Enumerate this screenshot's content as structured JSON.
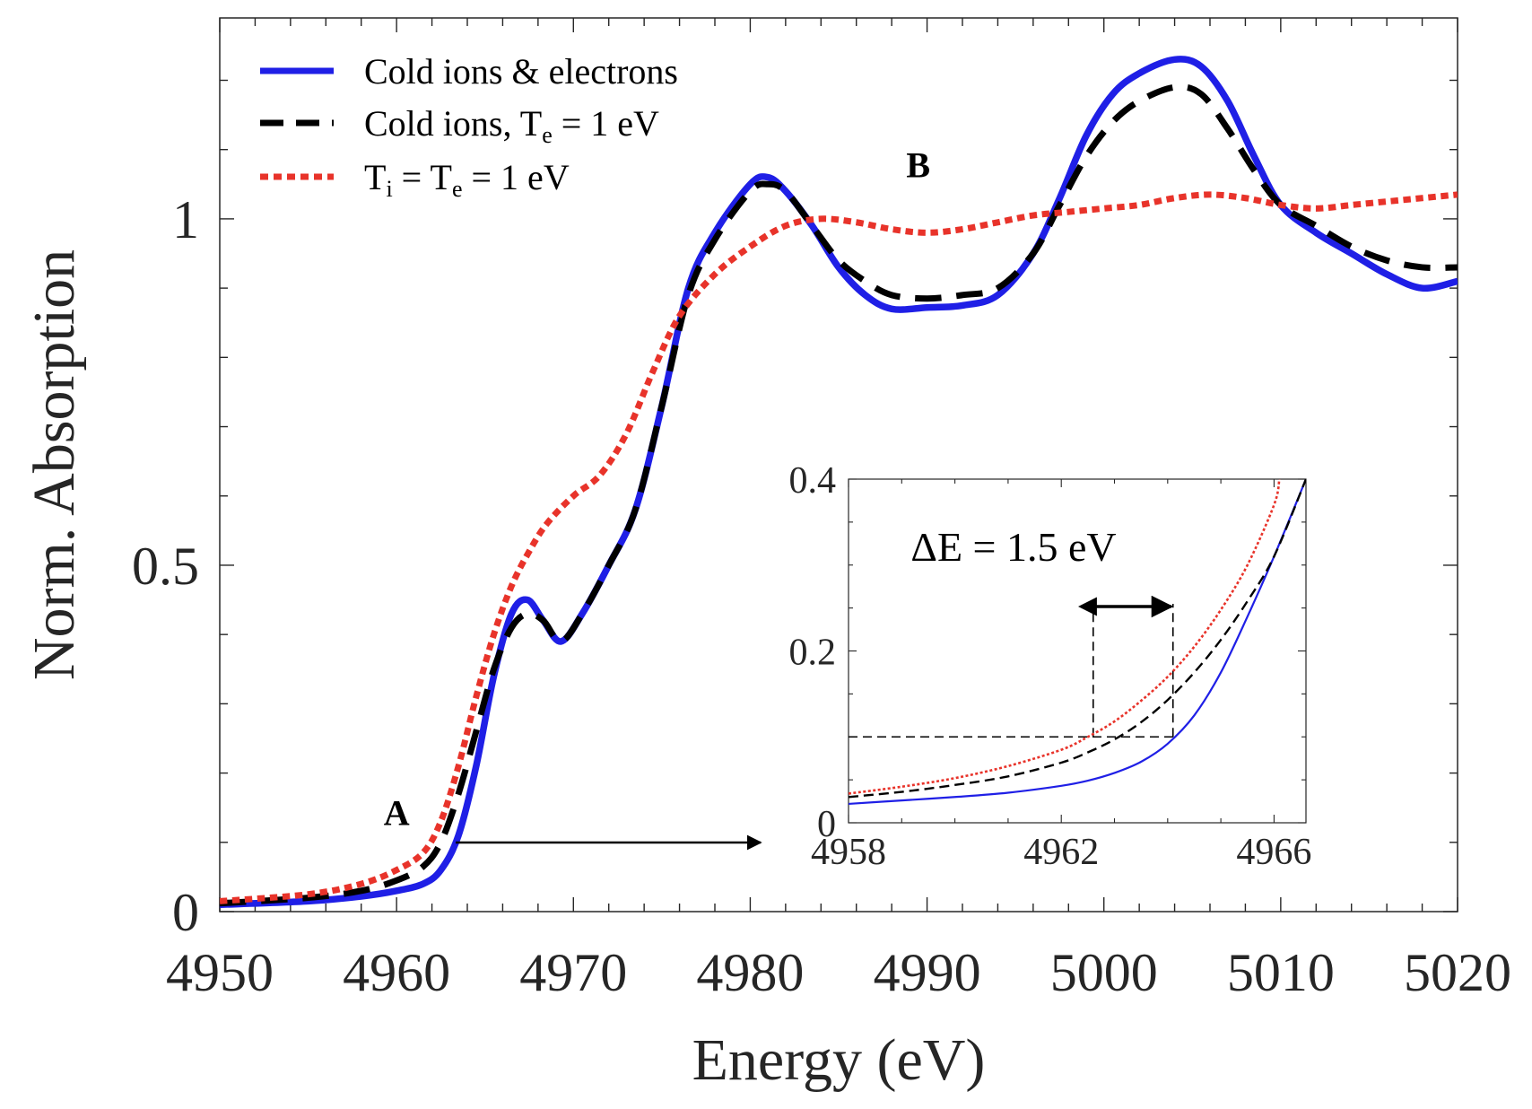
{
  "chart_data": [
    {
      "type": "line",
      "title": "",
      "xlabel": "Energy (eV)",
      "ylabel": "Norm. Absorption",
      "xlim": [
        4950,
        5020
      ],
      "ylim": [
        0,
        1.29
      ],
      "xticks": [
        4950,
        4960,
        4970,
        4980,
        4990,
        5000,
        5010,
        5020
      ],
      "xtick_labels": [
        "4950",
        "4960",
        "4970",
        "4980",
        "4990",
        "5000",
        "5010",
        "5020"
      ],
      "yticks": [
        0,
        0.5,
        1
      ],
      "ytick_labels": [
        "0",
        "0.5",
        "1"
      ],
      "grid": false,
      "legend_position": "top-left",
      "series": [
        {
          "name": "Cold ions & electrons",
          "name_parts": [
            "Cold ions & electrons"
          ],
          "color": "#1f1fe6",
          "style": "solid",
          "x": [
            4950,
            4955,
            4958,
            4960,
            4961.5,
            4962.5,
            4963.5,
            4964.5,
            4965.5,
            4966.5,
            4967.4,
            4968.3,
            4969.3,
            4970.5,
            4972,
            4973.5,
            4975,
            4976.5,
            4978,
            4980,
            4981,
            4982,
            4983.5,
            4985,
            4986.5,
            4988,
            4990,
            4992,
            4994,
            4996,
            4997.5,
            4999,
            5000.5,
            5002,
            5004,
            5005.5,
            5007,
            5008.5,
            5010,
            5012,
            5014,
            5016,
            5018,
            5020
          ],
          "y": [
            0.01,
            0.015,
            0.022,
            0.03,
            0.04,
            0.06,
            0.11,
            0.21,
            0.34,
            0.43,
            0.45,
            0.42,
            0.39,
            0.43,
            0.5,
            0.58,
            0.73,
            0.9,
            0.98,
            1.05,
            1.06,
            1.04,
            0.99,
            0.93,
            0.89,
            0.87,
            0.872,
            0.875,
            0.89,
            0.95,
            1.03,
            1.12,
            1.18,
            1.21,
            1.23,
            1.22,
            1.17,
            1.09,
            1.02,
            0.98,
            0.95,
            0.92,
            0.9,
            0.91
          ]
        },
        {
          "name": "Cold ions, T_e = 1 eV",
          "name_parts": [
            "Cold ions, T",
            "e",
            " = 1 eV"
          ],
          "color": "#000000",
          "style": "dashed",
          "x": [
            4950,
            4955,
            4958,
            4960,
            4961.5,
            4962.5,
            4963.5,
            4964.5,
            4965.5,
            4966.5,
            4967.4,
            4968.3,
            4969.3,
            4970.5,
            4972,
            4973.5,
            4975,
            4976.5,
            4978,
            4980,
            4981,
            4982,
            4983.5,
            4985,
            4986.5,
            4988,
            4990,
            4992,
            4994,
            4996,
            4997.5,
            4999,
            5000.5,
            5002,
            5004,
            5005.5,
            5007,
            5008.5,
            5010,
            5012,
            5014,
            5016,
            5018,
            5020
          ],
          "y": [
            0.012,
            0.02,
            0.03,
            0.045,
            0.065,
            0.1,
            0.17,
            0.26,
            0.35,
            0.41,
            0.43,
            0.42,
            0.39,
            0.43,
            0.5,
            0.58,
            0.73,
            0.89,
            0.97,
            1.04,
            1.05,
            1.04,
            0.99,
            0.94,
            0.91,
            0.89,
            0.885,
            0.89,
            0.9,
            0.95,
            1.02,
            1.09,
            1.14,
            1.17,
            1.19,
            1.18,
            1.13,
            1.07,
            1.02,
            0.99,
            0.96,
            0.94,
            0.93,
            0.93
          ]
        },
        {
          "name": "T_i = T_e = 1 eV",
          "name_parts": [
            "T",
            "i",
            " = T",
            "e",
            " = 1 eV"
          ],
          "color": "#e8332a",
          "style": "dotted",
          "x": [
            4950,
            4955,
            4958,
            4960,
            4961.5,
            4962.5,
            4963.5,
            4964.5,
            4965.5,
            4966.5,
            4967.5,
            4968.5,
            4970,
            4971.5,
            4973,
            4974.5,
            4976,
            4978,
            4980,
            4982,
            4984,
            4986,
            4988,
            4990,
            4992,
            4994,
            4996,
            4998,
            5000,
            5002,
            5004,
            5006,
            5008,
            5010,
            5012,
            5014,
            5016,
            5018,
            5020
          ],
          "y": [
            0.015,
            0.025,
            0.04,
            0.06,
            0.085,
            0.13,
            0.21,
            0.31,
            0.4,
            0.47,
            0.52,
            0.56,
            0.6,
            0.63,
            0.69,
            0.78,
            0.86,
            0.92,
            0.96,
            0.99,
            1.0,
            0.995,
            0.985,
            0.98,
            0.985,
            0.995,
            1.005,
            1.01,
            1.015,
            1.02,
            1.03,
            1.035,
            1.03,
            1.02,
            1.015,
            1.02,
            1.025,
            1.03,
            1.035
          ]
        }
      ],
      "annotations": [
        {
          "text": "A",
          "x": 4960,
          "y": 0.125
        },
        {
          "text": "B",
          "x": 4989.5,
          "y": 1.06
        }
      ]
    },
    {
      "type": "line",
      "title": "",
      "xlabel": "",
      "ylabel": "",
      "xlim": [
        4958,
        4966.6
      ],
      "ylim": [
        0,
        0.4
      ],
      "xticks": [
        4958,
        4962,
        4966
      ],
      "xtick_labels": [
        "4958",
        "4962",
        "4966"
      ],
      "yticks": [
        0,
        0.2,
        0.4
      ],
      "ytick_labels": [
        "0",
        "0.2",
        "0.4"
      ],
      "series": [
        {
          "name": "Cold ions & electrons",
          "color": "#1f1fe6",
          "style": "solid",
          "x": [
            4958,
            4959,
            4960,
            4961,
            4962,
            4962.5,
            4963,
            4963.5,
            4964,
            4964.5,
            4965,
            4965.5,
            4966,
            4966.6
          ],
          "y": [
            0.022,
            0.026,
            0.03,
            0.035,
            0.043,
            0.049,
            0.058,
            0.071,
            0.092,
            0.125,
            0.175,
            0.24,
            0.31,
            0.4
          ]
        },
        {
          "name": "Cold ions, T_e = 1 eV",
          "color": "#000000",
          "style": "dashed",
          "x": [
            4958,
            4959,
            4960,
            4961,
            4962,
            4962.5,
            4963,
            4963.5,
            4964,
            4964.5,
            4965,
            4965.5,
            4966,
            4966.6
          ],
          "y": [
            0.03,
            0.036,
            0.044,
            0.054,
            0.07,
            0.082,
            0.097,
            0.117,
            0.143,
            0.175,
            0.213,
            0.258,
            0.31,
            0.4
          ]
        },
        {
          "name": "T_i = T_e = 1 eV",
          "color": "#e8332a",
          "style": "dotted",
          "x": [
            4958,
            4959,
            4960,
            4961,
            4962,
            4962.5,
            4963,
            4963.5,
            4964,
            4964.5,
            4965,
            4965.5,
            4966,
            4966.1
          ],
          "y": [
            0.034,
            0.042,
            0.052,
            0.066,
            0.085,
            0.1,
            0.118,
            0.142,
            0.17,
            0.205,
            0.248,
            0.3,
            0.37,
            0.4
          ]
        }
      ],
      "guides": {
        "level": 0.1,
        "e1": 4962.6,
        "e2": 4964.1
      },
      "annotation": "ΔE = 1.5 eV"
    }
  ]
}
